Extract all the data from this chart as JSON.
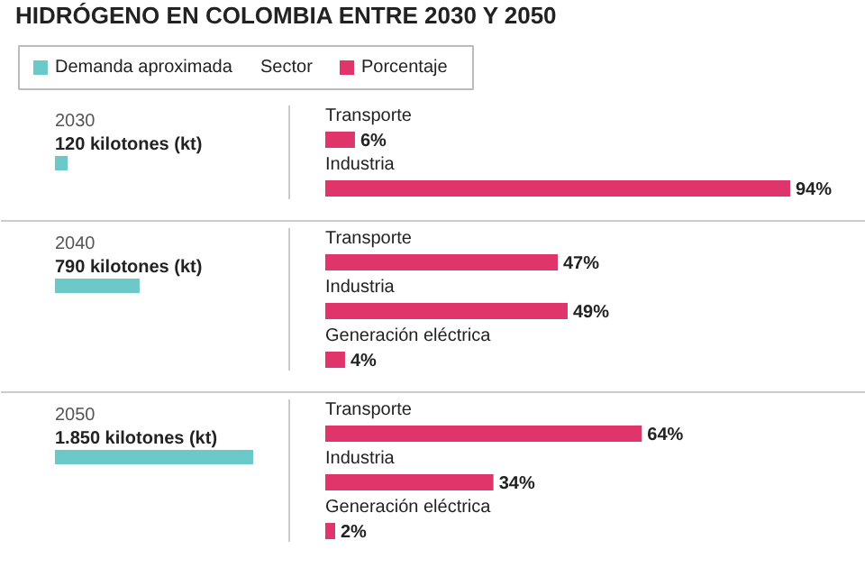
{
  "chart_data": [
    {
      "type": "bar",
      "title": "HIDRÓGENO EN COLOMBIA ENTRE 2030 Y 2050",
      "orientation": "horizontal",
      "categories": [
        "2030",
        "2040",
        "2050"
      ],
      "legend": "top left",
      "series": [
        {
          "name": "Demanda aproximada",
          "color": "#6cc9c9",
          "values": [
            120,
            790,
            1850
          ],
          "value_labels": [
            "120 kilotones (kt)",
            "790 kilotones (kt)",
            "1.850 kilotones (kt)"
          ]
        }
      ]
    },
    {
      "type": "bar",
      "orientation": "horizontal",
      "ylabel": "Sector",
      "categories": [
        "Transporte",
        "Industria"
      ],
      "series": [
        {
          "name": "Porcentaje",
          "color": "#e0356a",
          "values": [
            6,
            94
          ],
          "value_labels": [
            "6%",
            "94%"
          ]
        }
      ]
    },
    {
      "type": "bar",
      "orientation": "horizontal",
      "categories": [
        "Transporte",
        "Industria",
        "Generación eléctrica"
      ],
      "series": [
        {
          "color": "#e0356a",
          "values": [
            47,
            49,
            4
          ],
          "value_labels": [
            "47%",
            "49%",
            "4%"
          ]
        }
      ]
    },
    {
      "type": "bar",
      "orientation": "horizontal",
      "categories": [
        "Transporte",
        "Industria",
        "Generación eléctrica"
      ],
      "series": [
        {
          "color": "#e0356a",
          "values": [
            64,
            34,
            2
          ],
          "value_labels": [
            "64%",
            "34%",
            "2%"
          ]
        }
      ]
    }
  ]
}
